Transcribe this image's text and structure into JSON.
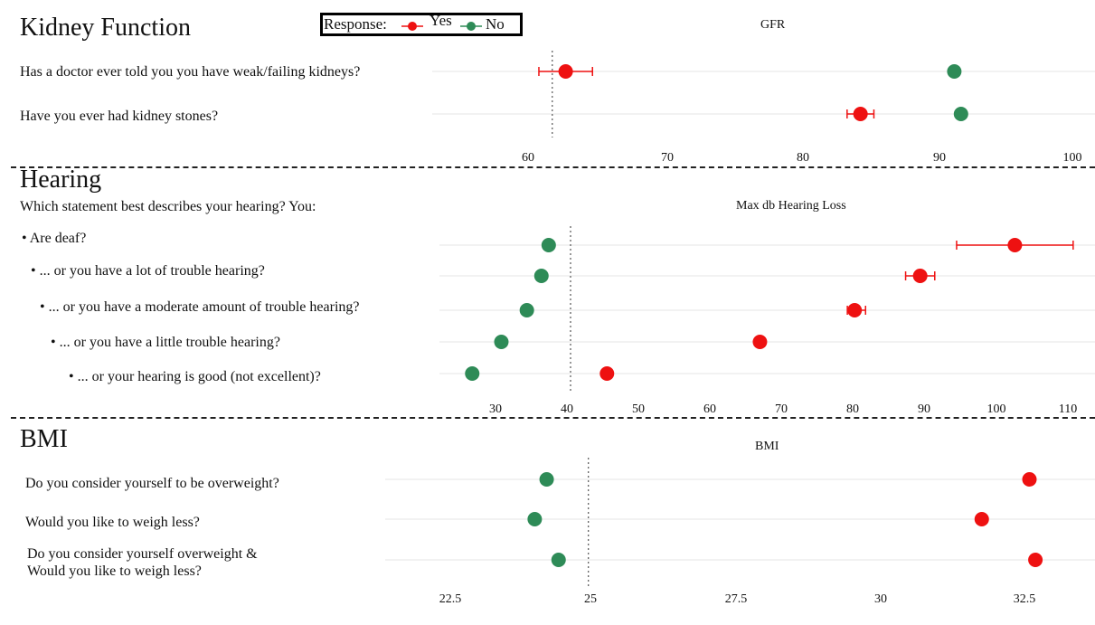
{
  "legend": {
    "title": "Response:",
    "items": [
      {
        "label": "Yes",
        "color": "#ee1111"
      },
      {
        "label": "No",
        "color": "#2e8b57"
      }
    ]
  },
  "sections": [
    {
      "title": "Kidney Function",
      "subtitle": "",
      "axis_title": "GFR",
      "questions": [
        {
          "text": "Has a doctor ever told you you have weak/failing kidneys?"
        },
        {
          "text": "Have you ever had kidney stones?"
        }
      ]
    },
    {
      "title": "Hearing",
      "subtitle": "Which statement best describes your hearing? You:",
      "axis_title": "Max db Hearing Loss",
      "questions": [
        {
          "text": "Are deaf?"
        },
        {
          "text": "... or you have a lot of trouble hearing?"
        },
        {
          "text": "... or you have a moderate amount of trouble hearing?"
        },
        {
          "text": "... or you have a little trouble hearing?"
        },
        {
          "text": "... or your hearing is good (not excellent)?"
        }
      ]
    },
    {
      "title": "BMI",
      "subtitle": "",
      "axis_title": "BMI",
      "questions": [
        {
          "text": "Do you consider yourself to be overweight?"
        },
        {
          "text": "Would you like to weigh less?"
        },
        {
          "text": "Do you consider yourself overweight &",
          "text2": "Would you like to weigh less?"
        }
      ]
    }
  ],
  "chart_data": [
    {
      "type": "scatter",
      "title": "Kidney Function",
      "xlabel": "GFR",
      "ylabel": "",
      "xlim": [
        50.5,
        100.5
      ],
      "reference_line": 60,
      "x_ticks": [
        "60",
        "70",
        "80",
        "90",
        "100"
      ],
      "categories": [
        "Has a doctor ever told you you have weak/failing kidneys?",
        "Have you ever had kidney stones?"
      ],
      "series": [
        {
          "name": "Yes",
          "color": "#ee1111",
          "values": [
            61,
            83
          ],
          "err_low": [
            59,
            82
          ],
          "err_high": [
            63,
            84
          ]
        },
        {
          "name": "No",
          "color": "#2e8b57",
          "values": [
            90,
            90.5
          ],
          "err_low": [
            90,
            90.5
          ],
          "err_high": [
            90,
            90.5
          ]
        }
      ],
      "grid": true
    },
    {
      "type": "scatter",
      "title": "Hearing",
      "xlabel": "Max db Hearing Loss",
      "ylabel": "",
      "xlim": [
        22,
        112
      ],
      "reference_line": 40,
      "x_ticks": [
        "30",
        "40",
        "50",
        "60",
        "70",
        "80",
        "90",
        "100",
        "110"
      ],
      "categories": [
        "Are deaf?",
        "... or you have a lot of trouble hearing?",
        "... or you have a moderate amount of trouble hearing?",
        "... or you have a little trouble hearing?",
        "... or your hearing is good (not excellent)?"
      ],
      "series": [
        {
          "name": "Yes",
          "color": "#ee1111",
          "values": [
            101,
            88,
            79,
            66,
            45
          ],
          "err_low": [
            93,
            86,
            78,
            66,
            45
          ],
          "err_high": [
            109,
            90,
            80.5,
            66,
            45
          ]
        },
        {
          "name": "No",
          "color": "#2e8b57",
          "values": [
            37,
            36,
            34,
            30.5,
            26.5
          ],
          "err_low": [
            37,
            36,
            34,
            30.5,
            26.5
          ],
          "err_high": [
            37,
            36,
            34,
            30.5,
            26.5
          ]
        }
      ],
      "grid": true
    },
    {
      "type": "scatter",
      "title": "BMI",
      "xlabel": "BMI",
      "ylabel": "",
      "xlim": [
        21.5,
        33.5
      ],
      "reference_line": 25,
      "x_ticks": [
        "22.5",
        "25",
        "27.5",
        "30",
        "32.5"
      ],
      "categories": [
        "Do you consider yourself to be overweight?",
        "Would you like to weigh less?",
        "Do you consider yourself overweight & Would you like to weigh less?"
      ],
      "series": [
        {
          "name": "Yes",
          "color": "#ee1111",
          "values": [
            32.4,
            31.6,
            32.5
          ],
          "err_low": [
            32.4,
            31.6,
            32.5
          ],
          "err_high": [
            32.4,
            31.6,
            32.5
          ]
        },
        {
          "name": "No",
          "color": "#2e8b57",
          "values": [
            24.3,
            24.1,
            24.5
          ],
          "err_low": [
            24.3,
            24.1,
            24.5
          ],
          "err_high": [
            24.3,
            24.1,
            24.5
          ]
        }
      ],
      "grid": true
    }
  ]
}
